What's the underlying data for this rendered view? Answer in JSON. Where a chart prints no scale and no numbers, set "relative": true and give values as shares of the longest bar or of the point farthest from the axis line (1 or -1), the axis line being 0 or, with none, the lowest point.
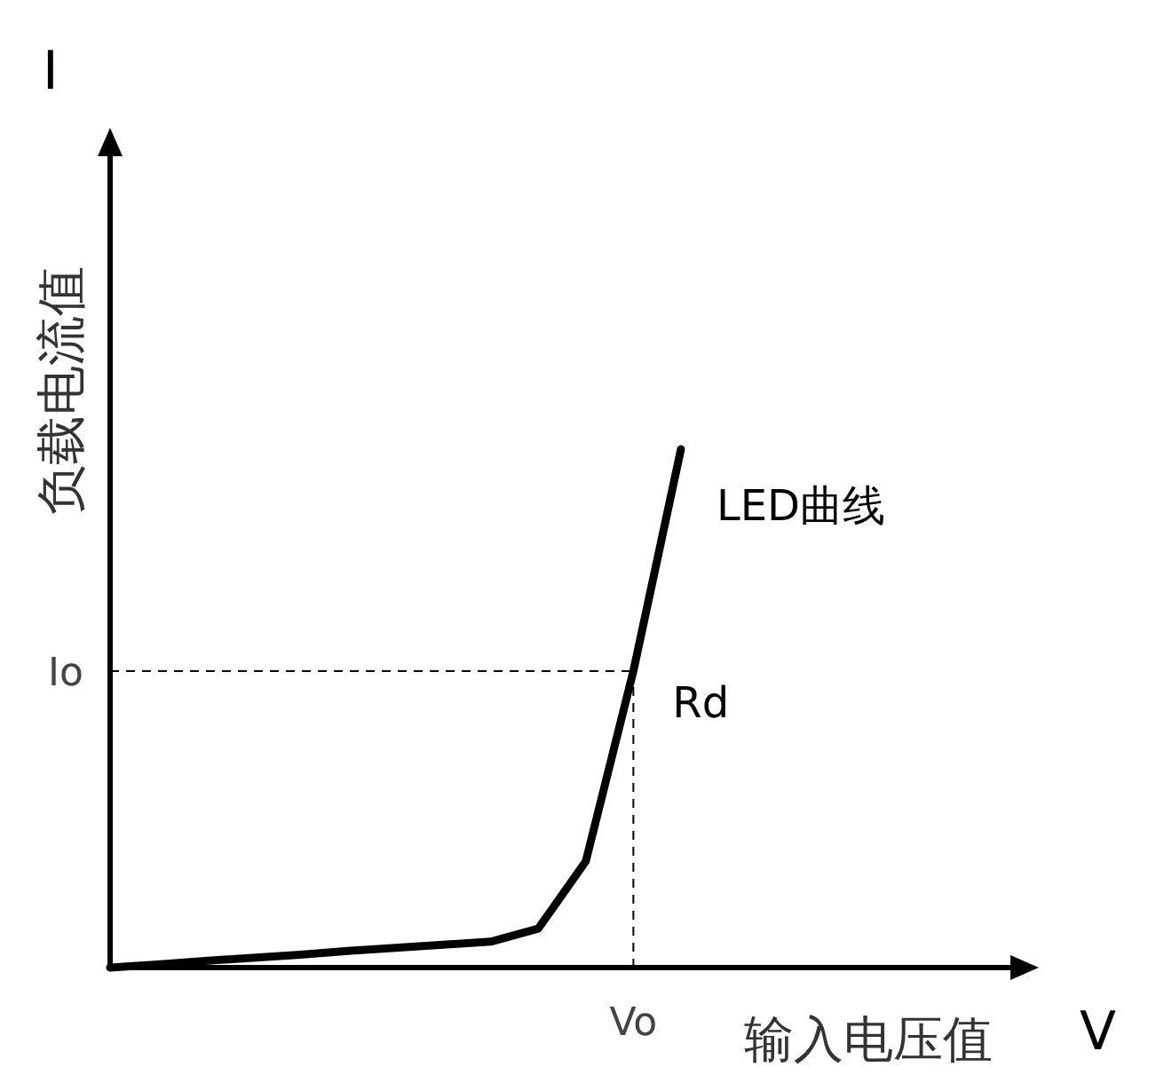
{
  "chart_data": {
    "type": "line",
    "relative": true,
    "xlabel": "输入电压值",
    "ylabel": "负载电流值",
    "marker": "none",
    "line_style": "solid",
    "categories": [
      null,
      null,
      null,
      null,
      null,
      null,
      null,
      null,
      null,
      null,
      null,
      null,
      null,
      null,
      null,
      null,
      null,
      null,
      null,
      null
    ],
    "series": [
      {
        "name": "LED曲线",
        "color": "#000000",
        "values": [
          0,
          0.006,
          0.013,
          0.019,
          0.025,
          0.032,
          0.038,
          0.044,
          0.05,
          0.075,
          0.205,
          0.572,
          1,
          null,
          null,
          null,
          null,
          null,
          null,
          null
        ]
      }
    ],
    "ref_lines": [
      {
        "axis": "y",
        "value": 0.572,
        "label": "Io",
        "color": "#000000",
        "line_style": "dashed"
      }
    ],
    "annotations": [
      "Rd",
      "Vo",
      "I",
      "V"
    ]
  }
}
